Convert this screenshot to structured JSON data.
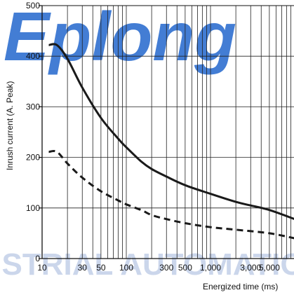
{
  "watermark": {
    "top": "Eplong",
    "bottom": "INDUSTRIAL AUTOMATION"
  },
  "chart_data": {
    "type": "line",
    "xlabel": "Energized time (ms)",
    "ylabel": "Inrush current (A. Peak)",
    "xscale": "log",
    "xlim": [
      10,
      10000
    ],
    "ylim": [
      0,
      500
    ],
    "grid": true,
    "x_ticks": [
      {
        "value": 10,
        "label": "10"
      },
      {
        "value": 30,
        "label": "30"
      },
      {
        "value": 50,
        "label": "50"
      },
      {
        "value": 100,
        "label": "100"
      },
      {
        "value": 300,
        "label": "300"
      },
      {
        "value": 500,
        "label": "500"
      },
      {
        "value": 1000,
        "label": "1,000"
      },
      {
        "value": 3000,
        "label": "3,000"
      },
      {
        "value": 5000,
        "label": "5,000"
      }
    ],
    "y_ticks": [
      {
        "value": 0,
        "label": "0"
      },
      {
        "value": 100,
        "label": "100"
      },
      {
        "value": 200,
        "label": "200"
      },
      {
        "value": 300,
        "label": "300"
      },
      {
        "value": 400,
        "label": "400"
      },
      {
        "value": 500,
        "label": "500"
      }
    ],
    "series": [
      {
        "style": "solid",
        "color": "#1a1a1a",
        "x": [
          12,
          15,
          20,
          30,
          50,
          80,
          100,
          150,
          200,
          300,
          500,
          1000,
          2000,
          3000,
          5000,
          10000
        ],
        "y": [
          422,
          422,
          395,
          338,
          278,
          237,
          220,
          192,
          177,
          162,
          145,
          128,
          112,
          105,
          96,
          78
        ]
      },
      {
        "style": "dashed",
        "color": "#1a1a1a",
        "x": [
          12,
          15,
          20,
          30,
          50,
          80,
          100,
          150,
          200,
          300,
          500,
          1000,
          2000,
          5000,
          10000
        ],
        "y": [
          211,
          211,
          188,
          160,
          133,
          115,
          107,
          96,
          86,
          78,
          70,
          62,
          57,
          50,
          40
        ]
      }
    ]
  }
}
